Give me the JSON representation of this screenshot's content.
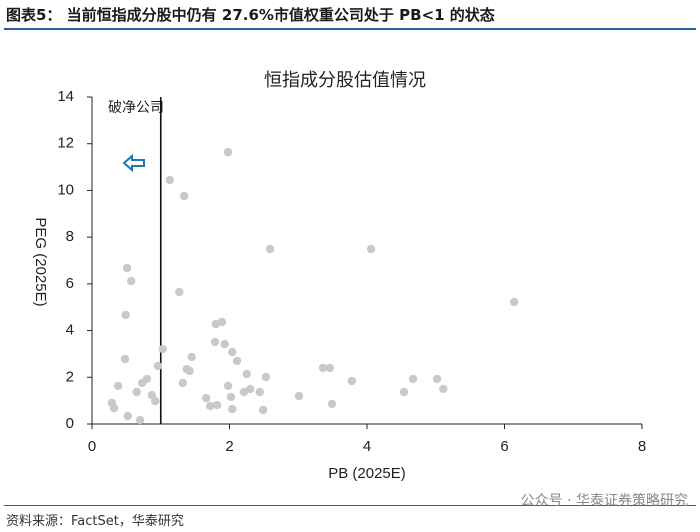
{
  "chart_data": {
    "type": "scatter",
    "figure_title": "图表5：  当前恒指成分股中仍有 27.6%市值权重公司处于 PB<1 的状态",
    "title": "恒指成分股估值情况",
    "x_label": "PB (2025E)",
    "y_label": "PEG (2025E)",
    "annotation": "破净公司",
    "reference_x": 1,
    "source": "资料来源：FactSet，华泰研究",
    "watermark": "公众号 · 华泰证券策略研究",
    "xlim": [
      0,
      8
    ],
    "xticks": [
      0,
      2,
      4,
      6,
      8
    ],
    "ylim": [
      0,
      14
    ],
    "yticks": [
      0,
      2,
      4,
      6,
      8,
      10,
      12,
      14
    ],
    "color": "#c9c9c9",
    "x": [
      1.13,
      1.34,
      1.98,
      2.59,
      4.06,
      6.14,
      0.51,
      0.57,
      1.27,
      0.49,
      1.8,
      1.89,
      1.79,
      1.93,
      1.03,
      2.04,
      1.45,
      0.48,
      2.11,
      0.96,
      1.38,
      1.42,
      2.25,
      3.36,
      3.46,
      3.78,
      4.67,
      5.02,
      5.11,
      4.54,
      2.53,
      0.8,
      0.73,
      0.38,
      1.32,
      1.98,
      2.3,
      2.21,
      2.44,
      0.65,
      0.87,
      1.66,
      2.02,
      3.01,
      0.92,
      0.29,
      3.49,
      1.72,
      1.82,
      0.32,
      2.04,
      2.49,
      0.52,
      0.7
    ],
    "values": [
      10.45,
      9.76,
      11.64,
      7.49,
      7.49,
      5.22,
      6.68,
      6.12,
      5.65,
      4.67,
      4.28,
      4.37,
      3.51,
      3.42,
      3.21,
      3.08,
      2.87,
      2.78,
      2.7,
      2.48,
      2.35,
      2.27,
      2.14,
      2.4,
      2.4,
      1.84,
      1.93,
      1.93,
      1.5,
      1.37,
      2.01,
      1.93,
      1.76,
      1.63,
      1.76,
      1.63,
      1.5,
      1.37,
      1.37,
      1.37,
      1.24,
      1.11,
      1.16,
      1.2,
      0.98,
      0.9,
      0.86,
      0.77,
      0.81,
      0.68,
      0.64,
      0.6,
      0.34,
      0.17
    ]
  }
}
